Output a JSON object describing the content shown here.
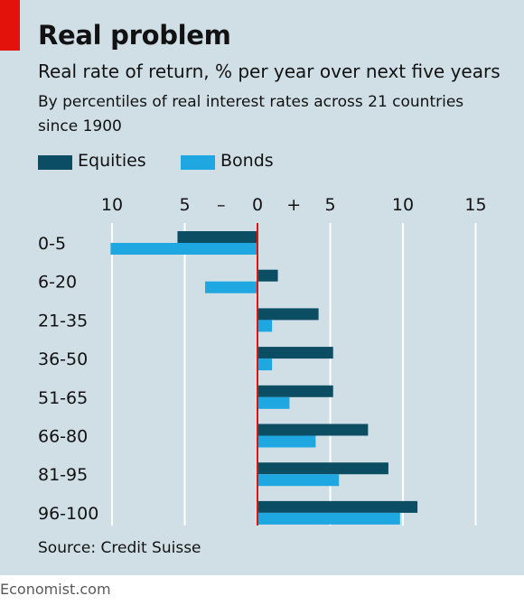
{
  "header": {
    "title": "Real problem",
    "subtitle": "Real rate of return, % per year over next five years",
    "description": "By percentiles of real interest rates across 21 countries since 1900"
  },
  "legend": {
    "items": [
      {
        "label": "Equities",
        "color": "#0b4d63"
      },
      {
        "label": "Bonds",
        "color": "#1ea7e0"
      }
    ]
  },
  "axis": {
    "ticks": [
      "10",
      "5",
      "–",
      "0",
      "+",
      "5",
      "10",
      "15"
    ]
  },
  "colors": {
    "panel": "#d0dfe6",
    "zero_line": "#e3120b",
    "grid": "#ffffff",
    "accent_tag": "#e3120b"
  },
  "chart_data": {
    "type": "bar",
    "orientation": "horizontal",
    "categories": [
      "0-5",
      "6-20",
      "21-35",
      "36-50",
      "51-65",
      "66-80",
      "81-95",
      "96-100"
    ],
    "series": [
      {
        "name": "Equities",
        "values": [
          -5.5,
          1.4,
          4.2,
          5.2,
          5.2,
          7.6,
          9.0,
          11.0
        ]
      },
      {
        "name": "Bonds",
        "values": [
          -10.1,
          -3.6,
          1.0,
          1.0,
          2.2,
          4.0,
          5.6,
          9.8
        ]
      }
    ],
    "xlim": [
      -10,
      15
    ],
    "tick_values": [
      -10,
      -5,
      0,
      5,
      10,
      15
    ],
    "grid": true
  },
  "source": "Source: Credit Suisse",
  "footer": "Economist.com"
}
